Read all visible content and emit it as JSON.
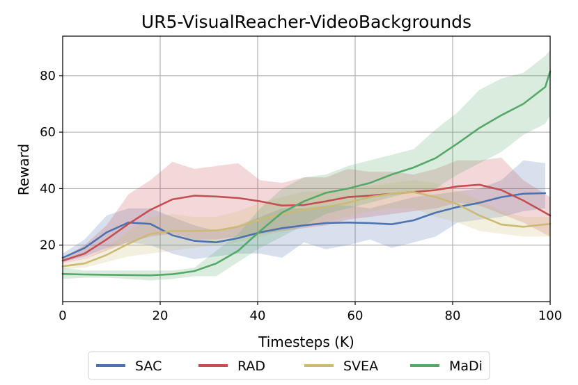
{
  "chart_data": {
    "type": "line",
    "title": "UR5-VisualReacher-VideoBackgrounds",
    "xlabel": "Timesteps (K)",
    "ylabel": "Reward",
    "xlim": [
      0,
      100
    ],
    "ylim": [
      0,
      94
    ],
    "xticks": [
      0,
      20,
      40,
      60,
      80,
      100
    ],
    "yticks": [
      20,
      40,
      60,
      80
    ],
    "grid": true,
    "legend_position": "bottom",
    "series": [
      {
        "name": "SAC",
        "color": "#4c72b0",
        "x": [
          0,
          4.5,
          9,
          13.5,
          18,
          22.5,
          27,
          31.5,
          36,
          40.5,
          45,
          49.5,
          54,
          58.5,
          63,
          67.5,
          72,
          76.5,
          81,
          85.5,
          90,
          94.5,
          99
        ],
        "y": [
          15.5,
          19,
          24.5,
          28,
          27.5,
          23.5,
          21.5,
          21,
          22.5,
          24.5,
          26,
          27,
          27.8,
          28,
          27.8,
          27.4,
          28.8,
          31.5,
          33.5,
          35,
          37,
          38.2,
          38.4
        ],
        "lower": [
          14,
          16,
          19,
          21,
          20,
          17,
          15,
          16,
          17,
          17,
          15.5,
          21,
          18.5,
          20,
          22,
          19,
          21,
          23,
          28,
          29,
          30,
          32,
          33
        ],
        "upper": [
          17,
          22,
          30.5,
          33,
          33,
          30,
          27,
          25,
          27,
          30,
          33,
          33,
          34,
          34,
          33,
          35,
          37,
          38,
          39,
          40,
          43,
          50,
          49
        ]
      },
      {
        "name": "RAD",
        "color": "#c44e52",
        "x": [
          0,
          4.5,
          9,
          13.5,
          18,
          22.5,
          27,
          31.5,
          36,
          40.5,
          45,
          49.5,
          54,
          58.5,
          63,
          67.5,
          72,
          76.5,
          81,
          85.5,
          90,
          94.5,
          100
        ],
        "y": [
          14.5,
          17,
          22,
          27.5,
          32.5,
          36.2,
          37.5,
          37.2,
          36.7,
          35.5,
          34,
          34.2,
          35.5,
          37,
          37.5,
          38.2,
          38.8,
          39.5,
          40.8,
          41.4,
          39.5,
          35.8,
          30.5
        ],
        "lower": [
          13.5,
          15,
          18,
          21,
          23,
          24,
          22,
          22,
          23,
          24,
          25,
          26,
          27,
          29,
          30,
          31,
          32,
          33,
          35,
          34,
          31,
          28,
          23
        ],
        "upper": [
          15.5,
          20,
          27,
          38,
          43,
          49.5,
          47,
          48,
          49,
          43,
          42,
          44,
          44,
          47,
          46,
          46,
          45,
          47,
          50,
          50,
          51,
          43,
          37
        ]
      },
      {
        "name": "SVEA",
        "color": "#ccb974",
        "x": [
          0,
          4.5,
          9,
          13.5,
          18,
          22.5,
          27,
          31.5,
          36,
          40.5,
          45,
          49.5,
          54,
          58.5,
          63,
          67.5,
          72,
          76.5,
          81,
          85.5,
          90,
          94.5,
          100
        ],
        "y": [
          12.5,
          13.5,
          16.5,
          20.5,
          24,
          25,
          25,
          25.2,
          26.5,
          29,
          31,
          32.5,
          33.5,
          35,
          37,
          38.2,
          38.8,
          37,
          34.5,
          30.5,
          27.3,
          26.5,
          27.5
        ],
        "lower": [
          11.5,
          12,
          14,
          16,
          17,
          18,
          19,
          20,
          21,
          23,
          25,
          27,
          28,
          30,
          32,
          33,
          33,
          30,
          28,
          25,
          24,
          23,
          23
        ],
        "upper": [
          13.5,
          15,
          19,
          25,
          30,
          31,
          30,
          30,
          32,
          35,
          37,
          39,
          39,
          40,
          41,
          42,
          43,
          42,
          39,
          36,
          32,
          30,
          30
        ]
      },
      {
        "name": "MaDi",
        "color": "#55a868",
        "x": [
          0,
          4.5,
          9,
          13.5,
          18,
          22.5,
          27,
          31.5,
          36,
          40.5,
          45,
          49.5,
          54,
          58.5,
          63,
          67.5,
          72,
          76.5,
          81,
          85.5,
          90,
          94.5,
          99,
          100
        ],
        "y": [
          9.8,
          9.6,
          9.5,
          9.4,
          9.3,
          9.7,
          10.8,
          13.5,
          18,
          25,
          31.5,
          35.5,
          38.5,
          40,
          42,
          45,
          47.5,
          50.8,
          56,
          61.5,
          66,
          70,
          76,
          81.5
        ],
        "lower": [
          8,
          8.5,
          8.5,
          8,
          7.5,
          8,
          9,
          9,
          14,
          19,
          23,
          27,
          31,
          33,
          35,
          37,
          39,
          40,
          45,
          49,
          53,
          59,
          63,
          66
        ],
        "upper": [
          12,
          11,
          11,
          11,
          11,
          11,
          12,
          18,
          24,
          33,
          40,
          44,
          45,
          48,
          50,
          52,
          54,
          61,
          67,
          75,
          79,
          81,
          87,
          89
        ]
      }
    ]
  }
}
